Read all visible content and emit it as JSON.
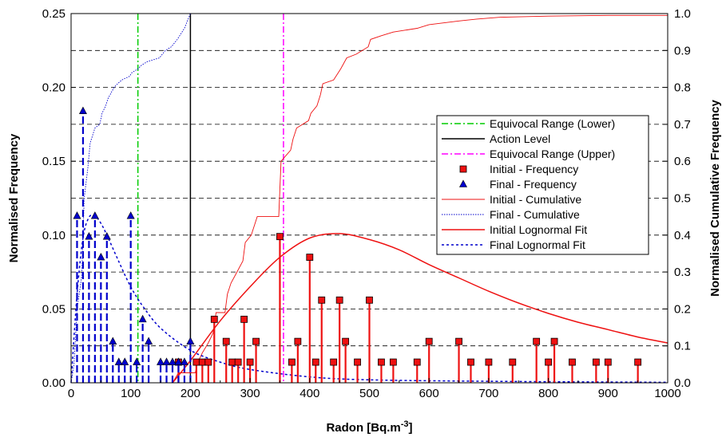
{
  "chart_data": {
    "type": "scatter",
    "xlabel": "Radon [Bq.m",
    "xlabel_superscript": "-3",
    "xlabel_close": "]",
    "ylabel_left": "Normalised Frequency",
    "ylabel_right": "Normalised Cumulative Frequency",
    "xlim": [
      0,
      1000
    ],
    "ylim_left": [
      0,
      0.25
    ],
    "ylim_right": [
      0,
      1.0
    ],
    "x_ticks": [
      0,
      100,
      200,
      300,
      400,
      500,
      600,
      700,
      800,
      900,
      1000
    ],
    "y_left_ticks": [
      "0.00",
      "0.05",
      "0.10",
      "0.15",
      "0.20",
      "0.25"
    ],
    "y_right_ticks": [
      "0.0",
      "0.1",
      "0.2",
      "0.3",
      "0.4",
      "0.5",
      "0.6",
      "0.7",
      "0.8",
      "0.9",
      "1.0"
    ],
    "grid": "horizontal dashed",
    "legend_position": "right",
    "reference_lines": [
      {
        "name": "Equivocal Range (Lower)",
        "x": 112,
        "color": "#00cc00",
        "style": "dashdot"
      },
      {
        "name": "Action Level",
        "x": 200,
        "color": "#000000",
        "style": "solid"
      },
      {
        "name": "Equivocal Range (Upper)",
        "x": 356,
        "color": "#ff00ff",
        "style": "dashdot"
      }
    ],
    "series": [
      {
        "name": "Initial - Frequency",
        "kind": "stem-square",
        "color": "#ee1111",
        "points": [
          [
            180,
            0.014
          ],
          [
            210,
            0.014
          ],
          [
            220,
            0.014
          ],
          [
            230,
            0.014
          ],
          [
            240,
            0.043
          ],
          [
            260,
            0.028
          ],
          [
            270,
            0.014
          ],
          [
            280,
            0.014
          ],
          [
            290,
            0.043
          ],
          [
            300,
            0.014
          ],
          [
            310,
            0.028
          ],
          [
            350,
            0.099
          ],
          [
            370,
            0.014
          ],
          [
            380,
            0.028
          ],
          [
            400,
            0.085
          ],
          [
            410,
            0.014
          ],
          [
            420,
            0.056
          ],
          [
            440,
            0.014
          ],
          [
            450,
            0.056
          ],
          [
            460,
            0.028
          ],
          [
            480,
            0.014
          ],
          [
            500,
            0.056
          ],
          [
            520,
            0.014
          ],
          [
            540,
            0.014
          ],
          [
            580,
            0.014
          ],
          [
            600,
            0.028
          ],
          [
            650,
            0.028
          ],
          [
            670,
            0.014
          ],
          [
            700,
            0.014
          ],
          [
            740,
            0.014
          ],
          [
            780,
            0.028
          ],
          [
            800,
            0.014
          ],
          [
            810,
            0.028
          ],
          [
            840,
            0.014
          ],
          [
            880,
            0.014
          ],
          [
            900,
            0.014
          ],
          [
            950,
            0.014
          ]
        ]
      },
      {
        "name": "Final - Frequency",
        "kind": "stem-triangle",
        "color": "#0000cc",
        "points": [
          [
            10,
            0.113
          ],
          [
            20,
            0.184
          ],
          [
            30,
            0.099
          ],
          [
            40,
            0.113
          ],
          [
            50,
            0.085
          ],
          [
            60,
            0.099
          ],
          [
            70,
            0.028
          ],
          [
            80,
            0.014
          ],
          [
            90,
            0.014
          ],
          [
            100,
            0.113
          ],
          [
            110,
            0.014
          ],
          [
            120,
            0.043
          ],
          [
            130,
            0.028
          ],
          [
            150,
            0.014
          ],
          [
            160,
            0.014
          ],
          [
            170,
            0.014
          ],
          [
            180,
            0.014
          ],
          [
            190,
            0.014
          ],
          [
            200,
            0.028
          ]
        ]
      },
      {
        "name": "Initial - Cumulative",
        "kind": "line",
        "axis": "right",
        "color": "#ee1111",
        "points": [
          [
            170,
            0
          ],
          [
            180,
            0.027
          ],
          [
            208,
            0.027
          ],
          [
            212,
            0.054
          ],
          [
            220,
            0.081
          ],
          [
            230,
            0.108
          ],
          [
            238,
            0.135
          ],
          [
            243,
            0.19
          ],
          [
            258,
            0.19
          ],
          [
            262,
            0.24
          ],
          [
            268,
            0.27
          ],
          [
            278,
            0.3
          ],
          [
            288,
            0.33
          ],
          [
            292,
            0.38
          ],
          [
            302,
            0.4
          ],
          [
            308,
            0.43
          ],
          [
            312,
            0.45
          ],
          [
            348,
            0.45
          ],
          [
            352,
            0.6
          ],
          [
            368,
            0.63
          ],
          [
            372,
            0.66
          ],
          [
            378,
            0.69
          ],
          [
            398,
            0.71
          ],
          [
            402,
            0.73
          ],
          [
            412,
            0.75
          ],
          [
            418,
            0.78
          ],
          [
            422,
            0.81
          ],
          [
            440,
            0.82
          ],
          [
            452,
            0.85
          ],
          [
            462,
            0.88
          ],
          [
            478,
            0.89
          ],
          [
            498,
            0.91
          ],
          [
            502,
            0.93
          ],
          [
            520,
            0.94
          ],
          [
            540,
            0.95
          ],
          [
            580,
            0.96
          ],
          [
            600,
            0.97
          ],
          [
            650,
            0.98
          ],
          [
            680,
            0.985
          ],
          [
            720,
            0.99
          ],
          [
            800,
            0.993
          ],
          [
            900,
            0.995
          ],
          [
            1000,
            0.995
          ]
        ]
      },
      {
        "name": "Final - Cumulative",
        "kind": "line",
        "axis": "right",
        "color": "#0000cc",
        "points": [
          [
            0,
            0
          ],
          [
            5,
            0.05
          ],
          [
            10,
            0.2
          ],
          [
            18,
            0.29
          ],
          [
            22,
            0.5
          ],
          [
            28,
            0.58
          ],
          [
            32,
            0.65
          ],
          [
            40,
            0.69
          ],
          [
            48,
            0.7
          ],
          [
            52,
            0.73
          ],
          [
            58,
            0.75
          ],
          [
            62,
            0.77
          ],
          [
            72,
            0.8
          ],
          [
            78,
            0.81
          ],
          [
            85,
            0.82
          ],
          [
            98,
            0.83
          ],
          [
            102,
            0.84
          ],
          [
            112,
            0.85
          ],
          [
            118,
            0.86
          ],
          [
            128,
            0.87
          ],
          [
            148,
            0.88
          ],
          [
            158,
            0.9
          ],
          [
            168,
            0.91
          ],
          [
            178,
            0.93
          ],
          [
            190,
            0.96
          ],
          [
            200,
            1.0
          ],
          [
            1000,
            1.0
          ]
        ]
      },
      {
        "name": "Initial Lognormal Fit",
        "kind": "smooth",
        "color": "#ee1111",
        "points": [
          [
            170,
            0
          ],
          [
            200,
            0.015
          ],
          [
            250,
            0.042
          ],
          [
            300,
            0.065
          ],
          [
            350,
            0.085
          ],
          [
            400,
            0.098
          ],
          [
            450,
            0.101
          ],
          [
            500,
            0.097
          ],
          [
            550,
            0.09
          ],
          [
            600,
            0.08
          ],
          [
            650,
            0.071
          ],
          [
            700,
            0.062
          ],
          [
            750,
            0.054
          ],
          [
            800,
            0.047
          ],
          [
            850,
            0.041
          ],
          [
            900,
            0.036
          ],
          [
            950,
            0.031
          ],
          [
            1000,
            0.027
          ]
        ]
      },
      {
        "name": "Final Lognormal Fit",
        "kind": "smooth",
        "color": "#0000cc",
        "points": [
          [
            0,
            0
          ],
          [
            10,
            0.06
          ],
          [
            20,
            0.098
          ],
          [
            30,
            0.112
          ],
          [
            40,
            0.113
          ],
          [
            50,
            0.108
          ],
          [
            60,
            0.1
          ],
          [
            80,
            0.082
          ],
          [
            100,
            0.065
          ],
          [
            120,
            0.052
          ],
          [
            150,
            0.037
          ],
          [
            200,
            0.022
          ],
          [
            250,
            0.014
          ],
          [
            300,
            0.009
          ],
          [
            400,
            0.004
          ],
          [
            500,
            0.002
          ],
          [
            700,
            0.001
          ],
          [
            1000,
            0.0003
          ]
        ]
      }
    ]
  }
}
